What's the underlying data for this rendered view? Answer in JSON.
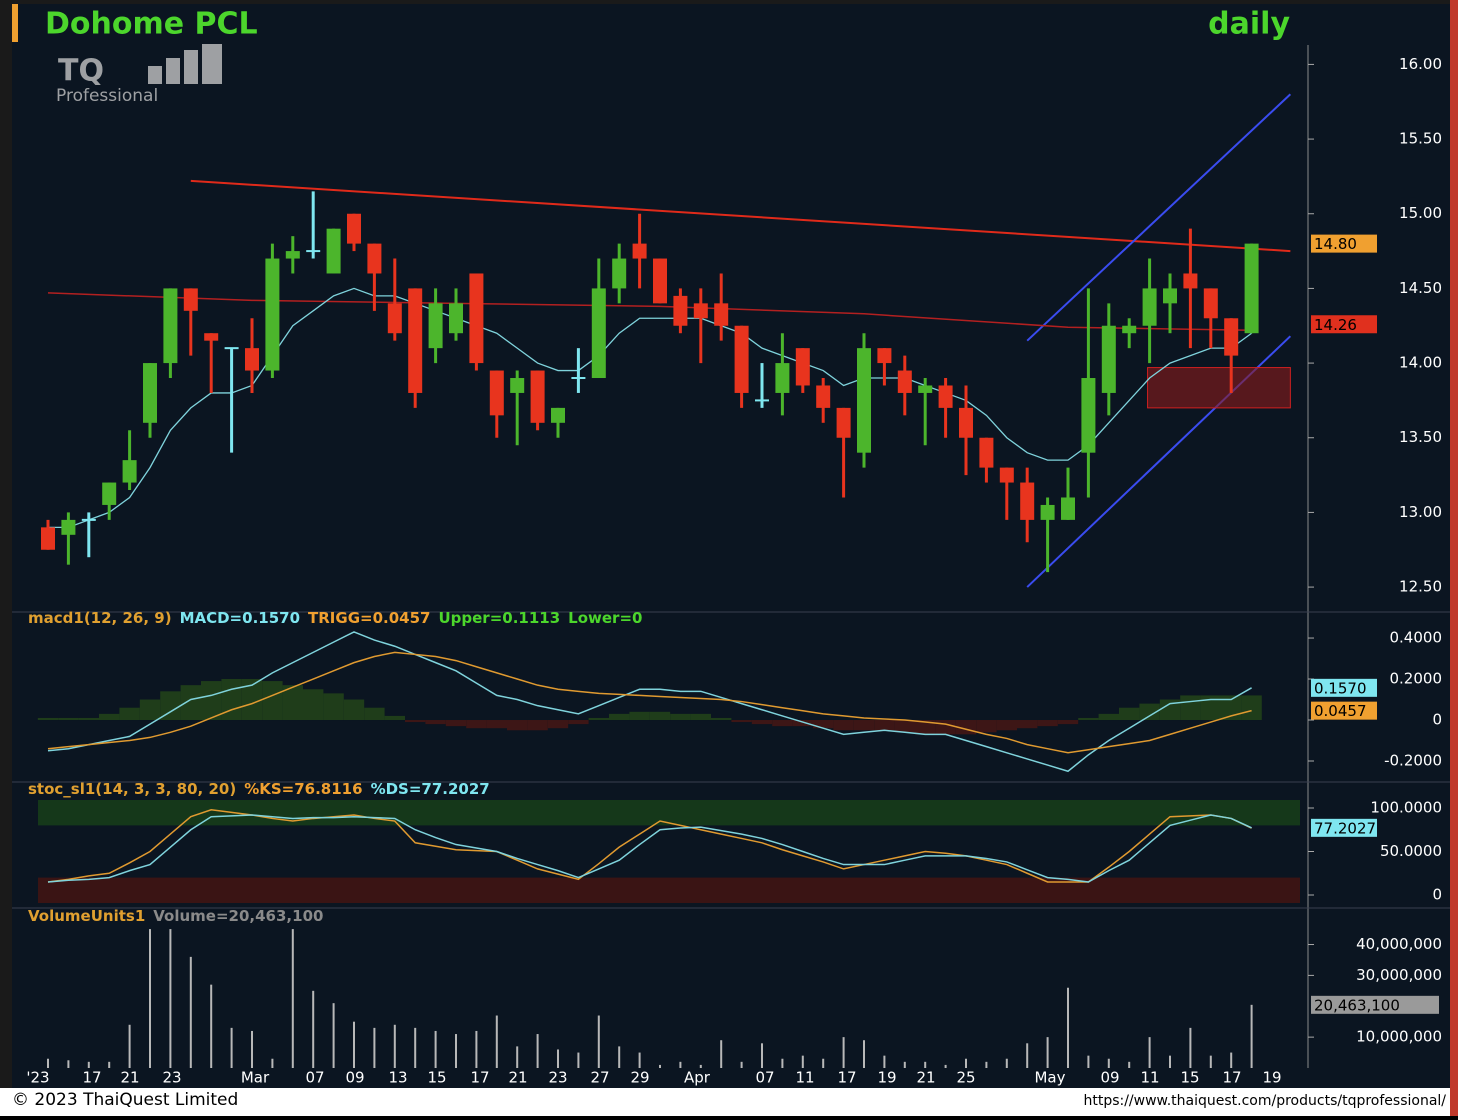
{
  "header": {
    "title": "Dohome PCL",
    "period": "daily",
    "logo": "TQ",
    "logo_sub": "Professional"
  },
  "footer": {
    "copyright": "© 2023 ThaiQuest Limited",
    "url": "https://www.thaiquest.com/products/tqprofessional/"
  },
  "chart_data": [
    {
      "type": "candlestick",
      "open": [
        12.9,
        12.85,
        12.95,
        13.05,
        13.2,
        13.6,
        14.0,
        14.5,
        14.2,
        14.1,
        14.1,
        13.95,
        14.7,
        14.75,
        14.6,
        15.0,
        14.8,
        14.4,
        14.5,
        14.1,
        14.2,
        14.6,
        13.95,
        13.8,
        13.95,
        13.6,
        13.9,
        13.9,
        14.5,
        14.8,
        14.7,
        14.45,
        14.4,
        14.4,
        14.25,
        13.75,
        13.8,
        14.1,
        13.85,
        13.7,
        13.4,
        14.1,
        13.95,
        13.8,
        13.85,
        13.7,
        13.5,
        13.3,
        13.2,
        12.95,
        12.95,
        13.4,
        13.8,
        14.2,
        14.25,
        14.4,
        14.6,
        14.5,
        14.3,
        14.2
      ],
      "high": [
        12.95,
        13.0,
        13.0,
        13.2,
        13.55,
        14.0,
        14.5,
        14.5,
        14.2,
        14.1,
        14.3,
        14.8,
        14.85,
        15.15,
        14.9,
        15.0,
        14.8,
        14.7,
        14.5,
        14.5,
        14.5,
        14.6,
        13.95,
        13.95,
        13.95,
        13.7,
        14.1,
        14.7,
        14.8,
        15.0,
        14.7,
        14.5,
        14.5,
        14.6,
        14.25,
        14.0,
        14.2,
        14.1,
        13.9,
        13.7,
        14.2,
        14.1,
        14.05,
        13.9,
        13.9,
        13.85,
        13.5,
        13.3,
        13.3,
        13.1,
        13.3,
        14.5,
        14.4,
        14.3,
        14.7,
        14.6,
        14.9,
        14.5,
        14.3,
        14.8
      ],
      "low": [
        12.75,
        12.65,
        12.7,
        12.95,
        13.15,
        13.5,
        13.9,
        14.05,
        13.8,
        13.4,
        13.8,
        13.9,
        14.6,
        14.7,
        14.6,
        14.75,
        14.35,
        14.15,
        13.7,
        14.0,
        14.15,
        13.95,
        13.5,
        13.45,
        13.55,
        13.5,
        13.8,
        13.9,
        14.4,
        14.5,
        14.4,
        14.2,
        14.0,
        14.15,
        13.7,
        13.7,
        13.65,
        13.8,
        13.6,
        13.1,
        13.3,
        13.85,
        13.65,
        13.45,
        13.5,
        13.25,
        13.2,
        12.95,
        12.8,
        12.6,
        12.95,
        13.1,
        13.65,
        14.1,
        14.0,
        14.2,
        14.1,
        14.1,
        13.8,
        14.2
      ],
      "close": [
        12.75,
        12.95,
        12.95,
        13.2,
        13.35,
        14.0,
        14.5,
        14.35,
        14.15,
        14.1,
        13.95,
        14.7,
        14.75,
        14.75,
        14.9,
        14.8,
        14.6,
        14.2,
        13.8,
        14.4,
        14.4,
        14.0,
        13.65,
        13.9,
        13.6,
        13.7,
        13.9,
        14.5,
        14.7,
        14.7,
        14.4,
        14.25,
        14.3,
        14.25,
        13.8,
        13.75,
        14.0,
        13.85,
        13.7,
        13.5,
        14.1,
        14.0,
        13.8,
        13.85,
        13.7,
        13.5,
        13.3,
        13.2,
        12.95,
        13.05,
        13.1,
        13.9,
        14.25,
        14.25,
        14.5,
        14.5,
        14.5,
        14.3,
        14.05,
        14.8
      ],
      "colors": {
        "up": "#4cb52c",
        "down": "#e8341e",
        "flat": "#7fe6f0"
      },
      "ma": {
        "color": "#7fd3dc",
        "values": [
          12.9,
          12.9,
          12.95,
          13.0,
          13.1,
          13.3,
          13.55,
          13.7,
          13.8,
          13.8,
          13.85,
          14.05,
          14.25,
          14.35,
          14.45,
          14.5,
          14.45,
          14.45,
          14.4,
          14.35,
          14.3,
          14.25,
          14.2,
          14.1,
          14.0,
          13.95,
          13.95,
          14.05,
          14.2,
          14.3,
          14.3,
          14.3,
          14.3,
          14.25,
          14.2,
          14.1,
          14.05,
          14.0,
          13.95,
          13.85,
          13.9,
          13.9,
          13.9,
          13.85,
          13.8,
          13.75,
          13.65,
          13.5,
          13.4,
          13.35,
          13.35,
          13.45,
          13.6,
          13.75,
          13.9,
          14.0,
          14.05,
          14.1,
          14.1,
          14.2
        ]
      },
      "ma_long": {
        "color": "#b32020",
        "x": [
          0,
          10,
          20,
          30,
          40,
          50,
          59
        ],
        "values": [
          14.47,
          14.42,
          14.4,
          14.38,
          14.33,
          14.24,
          14.22
        ]
      },
      "trendlines": [
        {
          "color": "#e02a1a",
          "points": [
            [
              7,
              15.22
            ],
            [
              60.9,
              14.75
            ]
          ]
        },
        {
          "color": "#3a4cf0",
          "points": [
            [
              48,
              14.15
            ],
            [
              60.9,
              15.8
            ]
          ]
        },
        {
          "color": "#3a4cf0",
          "points": [
            [
              48,
              12.5
            ],
            [
              60.9,
              14.18
            ]
          ]
        }
      ],
      "zone": {
        "color": "#8a1a1a",
        "x": [
          53.9,
          60.9
        ],
        "y": [
          13.7,
          13.97
        ]
      },
      "ylim": [
        12.38,
        16.13
      ],
      "yticks": [
        {
          "value": 16,
          "label": "16.00"
        },
        {
          "value": 15.5,
          "label": "15.50"
        },
        {
          "value": 15,
          "label": "15.00"
        },
        {
          "value": 14.5,
          "label": "14.50"
        },
        {
          "value": 14,
          "label": "14.00"
        },
        {
          "value": 13.5,
          "label": "13.50"
        },
        {
          "value": 13,
          "label": "13.00"
        },
        {
          "value": 12.5,
          "label": "12.50"
        }
      ],
      "markers": [
        {
          "value": 14.8,
          "label": "14.80",
          "color": "#f0a030"
        },
        {
          "value": 14.26,
          "label": "14.26",
          "color": "#e0301e"
        }
      ]
    },
    {
      "type": "macd",
      "title": "macd1(12, 26, 9)",
      "readouts": [
        {
          "text": "MACD=0.1570",
          "color": "#7fe6f0"
        },
        {
          "text": "TRIGG=0.0457",
          "color": "#f0a030"
        },
        {
          "text": "Upper=0.1113",
          "color": "#4cd62c"
        },
        {
          "text": "Lower=0",
          "color": "#4cd62c"
        }
      ],
      "series": [
        {
          "name": "MACD",
          "color": "#7fd3dc",
          "values": [
            -0.15,
            -0.14,
            -0.12,
            -0.1,
            -0.08,
            -0.02,
            0.04,
            0.1,
            0.12,
            0.15,
            0.17,
            0.23,
            0.28,
            0.33,
            0.38,
            0.43,
            0.39,
            0.36,
            0.32,
            0.28,
            0.24,
            0.18,
            0.12,
            0.1,
            0.07,
            0.05,
            0.03,
            0.07,
            0.11,
            0.15,
            0.15,
            0.14,
            0.14,
            0.11,
            0.08,
            0.05,
            0.02,
            -0.01,
            -0.04,
            -0.07,
            -0.06,
            -0.05,
            -0.06,
            -0.07,
            -0.07,
            -0.1,
            -0.13,
            -0.16,
            -0.19,
            -0.22,
            -0.25,
            -0.17,
            -0.1,
            -0.04,
            0.02,
            0.08,
            0.09,
            0.1,
            0.1,
            0.157
          ]
        },
        {
          "name": "TRIGG",
          "color": "#e09a30",
          "values": [
            -0.14,
            -0.13,
            -0.12,
            -0.11,
            -0.1,
            -0.085,
            -0.06,
            -0.03,
            0.01,
            0.05,
            0.08,
            0.12,
            0.16,
            0.2,
            0.24,
            0.28,
            0.31,
            0.33,
            0.32,
            0.31,
            0.29,
            0.26,
            0.23,
            0.2,
            0.17,
            0.15,
            0.14,
            0.13,
            0.125,
            0.12,
            0.115,
            0.11,
            0.105,
            0.1,
            0.09,
            0.075,
            0.06,
            0.045,
            0.03,
            0.02,
            0.01,
            0.005,
            0,
            -0.01,
            -0.02,
            -0.045,
            -0.07,
            -0.09,
            -0.12,
            -0.14,
            -0.16,
            -0.145,
            -0.13,
            -0.115,
            -0.1,
            -0.07,
            -0.04,
            -0.01,
            0.02,
            0.0457
          ]
        }
      ],
      "histogram": {
        "colors": {
          "up": "#1f3d1a",
          "down": "#3d1616"
        },
        "values": [
          0.01,
          0.01,
          0.01,
          0.03,
          0.06,
          0.1,
          0.14,
          0.17,
          0.19,
          0.2,
          0.2,
          0.19,
          0.17,
          0.15,
          0.13,
          0.1,
          0.06,
          0.02,
          -0.01,
          -0.02,
          -0.03,
          -0.04,
          -0.04,
          -0.05,
          -0.05,
          -0.04,
          -0.02,
          0.01,
          0.03,
          0.04,
          0.04,
          0.03,
          0.03,
          0.01,
          -0.01,
          -0.02,
          -0.03,
          -0.03,
          -0.04,
          -0.05,
          -0.05,
          -0.05,
          -0.06,
          -0.07,
          -0.07,
          -0.07,
          -0.06,
          -0.05,
          -0.04,
          -0.03,
          -0.02,
          0.01,
          0.03,
          0.06,
          0.08,
          0.1,
          0.12,
          0.12,
          0.12,
          0.12
        ]
      },
      "ylim": [
        -0.283,
        0.449
      ],
      "yticks": [
        {
          "value": 0.4,
          "label": "0.4000"
        },
        {
          "value": 0.2,
          "label": "0.2000"
        },
        0,
        {
          "value": -0.2,
          "label": "-0.2000"
        }
      ],
      "markers": [
        {
          "value": 0.157,
          "label": "0.1570",
          "color": "#7fe6f0"
        },
        {
          "value": 0.0457,
          "label": "0.0457",
          "color": "#f0a030"
        }
      ]
    },
    {
      "type": "stochastic",
      "title": "stoc_sl1(14, 3, 3, 80, 20)",
      "readouts": [
        {
          "text": "%KS=76.8116",
          "color": "#f0a030"
        },
        {
          "text": "%DS=77.2027",
          "color": "#7fe6f0"
        }
      ],
      "series": [
        {
          "name": "%KS",
          "color": "#e09a30",
          "values": [
            15,
            18,
            22,
            25,
            37,
            50,
            70,
            90,
            98,
            95,
            92,
            88,
            85,
            88,
            90,
            92,
            88,
            85,
            60,
            56,
            52,
            51,
            50,
            40,
            30,
            24,
            18,
            36,
            55,
            70,
            85,
            80,
            75,
            70,
            65,
            60,
            52,
            45,
            38,
            30,
            35,
            40,
            45,
            50,
            48,
            45,
            40,
            35,
            25,
            15,
            15,
            15,
            32,
            50,
            70,
            90,
            91,
            92,
            88,
            76.8116
          ]
        },
        {
          "name": "%DS",
          "color": "#7fd3dc",
          "values": [
            15,
            17,
            18,
            20,
            28,
            35,
            55,
            75,
            90,
            91,
            92,
            90,
            88,
            89,
            89,
            90,
            89,
            88,
            75,
            66,
            58,
            54,
            50,
            42,
            35,
            28,
            20,
            30,
            40,
            58,
            75,
            77,
            78,
            74,
            70,
            65,
            58,
            50,
            42,
            35,
            35,
            35,
            40,
            45,
            45,
            45,
            42,
            38,
            29,
            20,
            18,
            15,
            28,
            40,
            60,
            80,
            86,
            92,
            88,
            77.2027
          ]
        }
      ],
      "bands": [
        {
          "from": 80,
          "color": "#15381a"
        },
        {
          "from": 20,
          "color": "#3a1414"
        }
      ],
      "ylim": [
        -9.2,
        109.2
      ],
      "yticks": [
        {
          "value": 100,
          "label": "100.0000"
        },
        {
          "value": 50,
          "label": "50.0000"
        },
        0
      ],
      "markers": [
        {
          "value": 77.2027,
          "label": "77.2027",
          "color": "#7fe6f0"
        }
      ]
    },
    {
      "type": "volume",
      "title": "VolumeUnits1",
      "readouts": [
        {
          "text": "Volume=20,463,100",
          "color": "#8a8a8a"
        }
      ],
      "color": "#b8b8b8",
      "values": [
        3000000,
        2500000,
        2000000,
        2000000,
        14000000,
        45000000,
        45000000,
        36000000,
        27000000,
        13000000,
        12000000,
        3000000,
        45000000,
        25000000,
        21000000,
        15000000,
        13000000,
        14000000,
        13000000,
        12000000,
        11000000,
        12000000,
        17000000,
        7000000,
        11000000,
        6000000,
        5000000,
        17000000,
        7000000,
        5000000,
        1000000,
        2000000,
        1000000,
        9000000,
        2000000,
        8000000,
        3000000,
        4000000,
        3000000,
        10000000,
        9000000,
        4000000,
        2000000,
        2000000,
        1000000,
        3000000,
        2000000,
        3000000,
        8000000,
        10000000,
        26000000,
        4000000,
        3000000,
        2000000,
        10000000,
        4000000,
        13000000,
        4000000,
        5000000,
        20463100
      ],
      "ylim": [
        0,
        46000000
      ],
      "yticks": [
        {
          "value": 40000000,
          "label": "40,000,000"
        },
        {
          "value": 30000000,
          "label": "30,000,000"
        },
        {
          "value": 10000000,
          "label": "10,000,000"
        }
      ],
      "markers": [
        {
          "value": 20463100,
          "label": "20,463,100",
          "color": "#9a9a9a"
        }
      ],
      "x_labels": [
        "'23",
        "17",
        "21",
        "23",
        "Mar",
        "07",
        "09",
        "13",
        "15",
        "17",
        "21",
        "23",
        "27",
        "29",
        "Apr",
        "07",
        "11",
        "17",
        "19",
        "21",
        "25",
        "May",
        "09",
        "11",
        "15",
        "17",
        "19"
      ]
    }
  ]
}
